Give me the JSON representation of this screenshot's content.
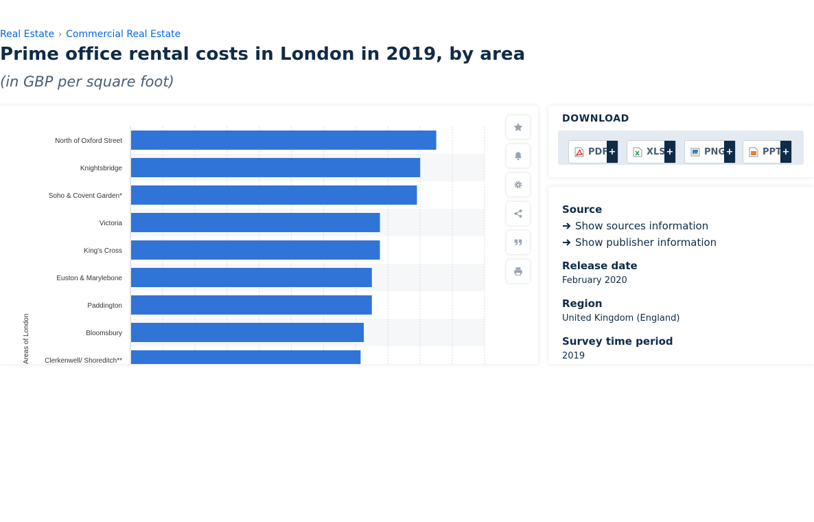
{
  "breadcrumb": {
    "items": [
      "Real Estate",
      "Commercial Real Estate"
    ],
    "separator": "›"
  },
  "title": "Prime office rental costs in London in 2019, by area",
  "subtitle": "(in GBP per square foot)",
  "toolbar": {
    "icons": [
      "star-icon",
      "bell-icon",
      "gear-icon",
      "share-icon",
      "quote-icon",
      "print-icon"
    ]
  },
  "download": {
    "title": "DOWNLOAD",
    "buttons": [
      {
        "label": "PDF",
        "plus": "+",
        "icon": "pdf-file-icon",
        "color": "#d9302b"
      },
      {
        "label": "XLS",
        "plus": "+",
        "icon": "xls-file-icon",
        "color": "#2f9a4a"
      },
      {
        "label": "PNG",
        "plus": "+",
        "icon": "png-file-icon",
        "color": "#2a7fd4"
      },
      {
        "label": "PPT",
        "plus": "+",
        "icon": "ppt-file-icon",
        "color": "#e8822a"
      }
    ]
  },
  "info": {
    "source_heading": "Source",
    "show_sources": "Show sources information",
    "show_publisher": "Show publisher information",
    "release_heading": "Release date",
    "release_value": "February 2020",
    "region_heading": "Region",
    "region_value": "United Kingdom (England)",
    "survey_heading": "Survey time period",
    "survey_value": "2019"
  },
  "chart_data": {
    "type": "bar",
    "orientation": "horizontal",
    "categories": [
      "North of Oxford Street",
      "Knightsbridge",
      "Soho & Covent Garden*",
      "Victoria",
      "King's Cross",
      "Euston & Marylebone",
      "Paddington",
      "Bloomsbury",
      "Clerkenwell/ Shoreditch**"
    ],
    "series": [
      {
        "values": [
          95,
          90,
          89,
          77.5,
          77.5,
          75,
          75,
          72.5,
          71.5
        ]
      }
    ],
    "ylabel": "Areas of London",
    "xlim": [
      0,
      110
    ],
    "bar_color": "#3174d8",
    "grid": true
  }
}
